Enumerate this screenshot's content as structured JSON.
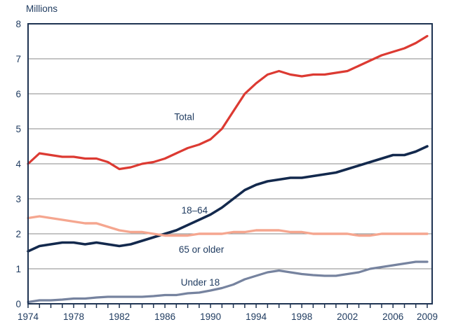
{
  "chart_data": {
    "type": "line",
    "title": "",
    "ylabel": "Millions",
    "xlabel": "",
    "grid": true,
    "legend_position": "inline-labels",
    "x_start": 1974,
    "x_end": 2009,
    "ylim": [
      0,
      8
    ],
    "yticks": [
      0,
      1,
      2,
      3,
      4,
      5,
      6,
      7,
      8
    ],
    "xtick_labels": [
      1974,
      1978,
      1982,
      1986,
      1990,
      1994,
      1998,
      2002,
      2006,
      2009
    ],
    "series": [
      {
        "name": "Total",
        "slug": "total",
        "color": "#dc3a32",
        "width": 3.2,
        "label_pos": {
          "year": 1987.7,
          "value": 5.35
        },
        "values": [
          4.0,
          4.3,
          4.25,
          4.2,
          4.2,
          4.15,
          4.15,
          4.05,
          3.85,
          3.9,
          4.0,
          4.05,
          4.15,
          4.3,
          4.45,
          4.55,
          4.7,
          5.0,
          5.5,
          6.0,
          6.3,
          6.55,
          6.65,
          6.55,
          6.5,
          6.55,
          6.55,
          6.6,
          6.65,
          6.8,
          6.95,
          7.1,
          7.2,
          7.3,
          7.45,
          7.65
        ]
      },
      {
        "name": "18–64",
        "slug": "18-64",
        "color": "#13294d",
        "width": 3.6,
        "label_pos": {
          "year": 1988.6,
          "value": 2.68
        },
        "values": [
          1.5,
          1.65,
          1.7,
          1.75,
          1.75,
          1.7,
          1.75,
          1.7,
          1.65,
          1.7,
          1.8,
          1.9,
          2.0,
          2.1,
          2.25,
          2.4,
          2.55,
          2.75,
          3.0,
          3.25,
          3.4,
          3.5,
          3.55,
          3.6,
          3.6,
          3.65,
          3.7,
          3.75,
          3.85,
          3.95,
          4.05,
          4.15,
          4.25,
          4.25,
          4.35,
          4.5
        ]
      },
      {
        "name": "65 or older",
        "slug": "65-or-older",
        "color": "#f5a68f",
        "width": 3.4,
        "label_pos": {
          "year": 1989.2,
          "value": 1.56
        },
        "values": [
          2.45,
          2.5,
          2.45,
          2.4,
          2.35,
          2.3,
          2.3,
          2.2,
          2.1,
          2.05,
          2.05,
          2.0,
          1.95,
          1.95,
          1.95,
          2.0,
          2.0,
          2.0,
          2.05,
          2.05,
          2.1,
          2.1,
          2.1,
          2.05,
          2.05,
          2.0,
          2.0,
          2.0,
          2.0,
          1.95,
          1.95,
          2.0,
          2.0,
          2.0,
          2.0,
          2.0
        ]
      },
      {
        "name": "Under 18",
        "slug": "under-18",
        "color": "#76839f",
        "width": 3.2,
        "label_pos": {
          "year": 1989.1,
          "value": 0.62
        },
        "values": [
          0.05,
          0.1,
          0.1,
          0.12,
          0.15,
          0.15,
          0.18,
          0.2,
          0.2,
          0.2,
          0.2,
          0.22,
          0.25,
          0.25,
          0.3,
          0.32,
          0.38,
          0.45,
          0.55,
          0.7,
          0.8,
          0.9,
          0.95,
          0.9,
          0.85,
          0.82,
          0.8,
          0.8,
          0.85,
          0.9,
          1.0,
          1.05,
          1.1,
          1.15,
          1.2,
          1.2
        ]
      }
    ]
  },
  "colors": {
    "background": "#ffffff",
    "axis_text": "#1e3a5f",
    "grid": "#8a8a8a",
    "frame": "#1e3352"
  }
}
